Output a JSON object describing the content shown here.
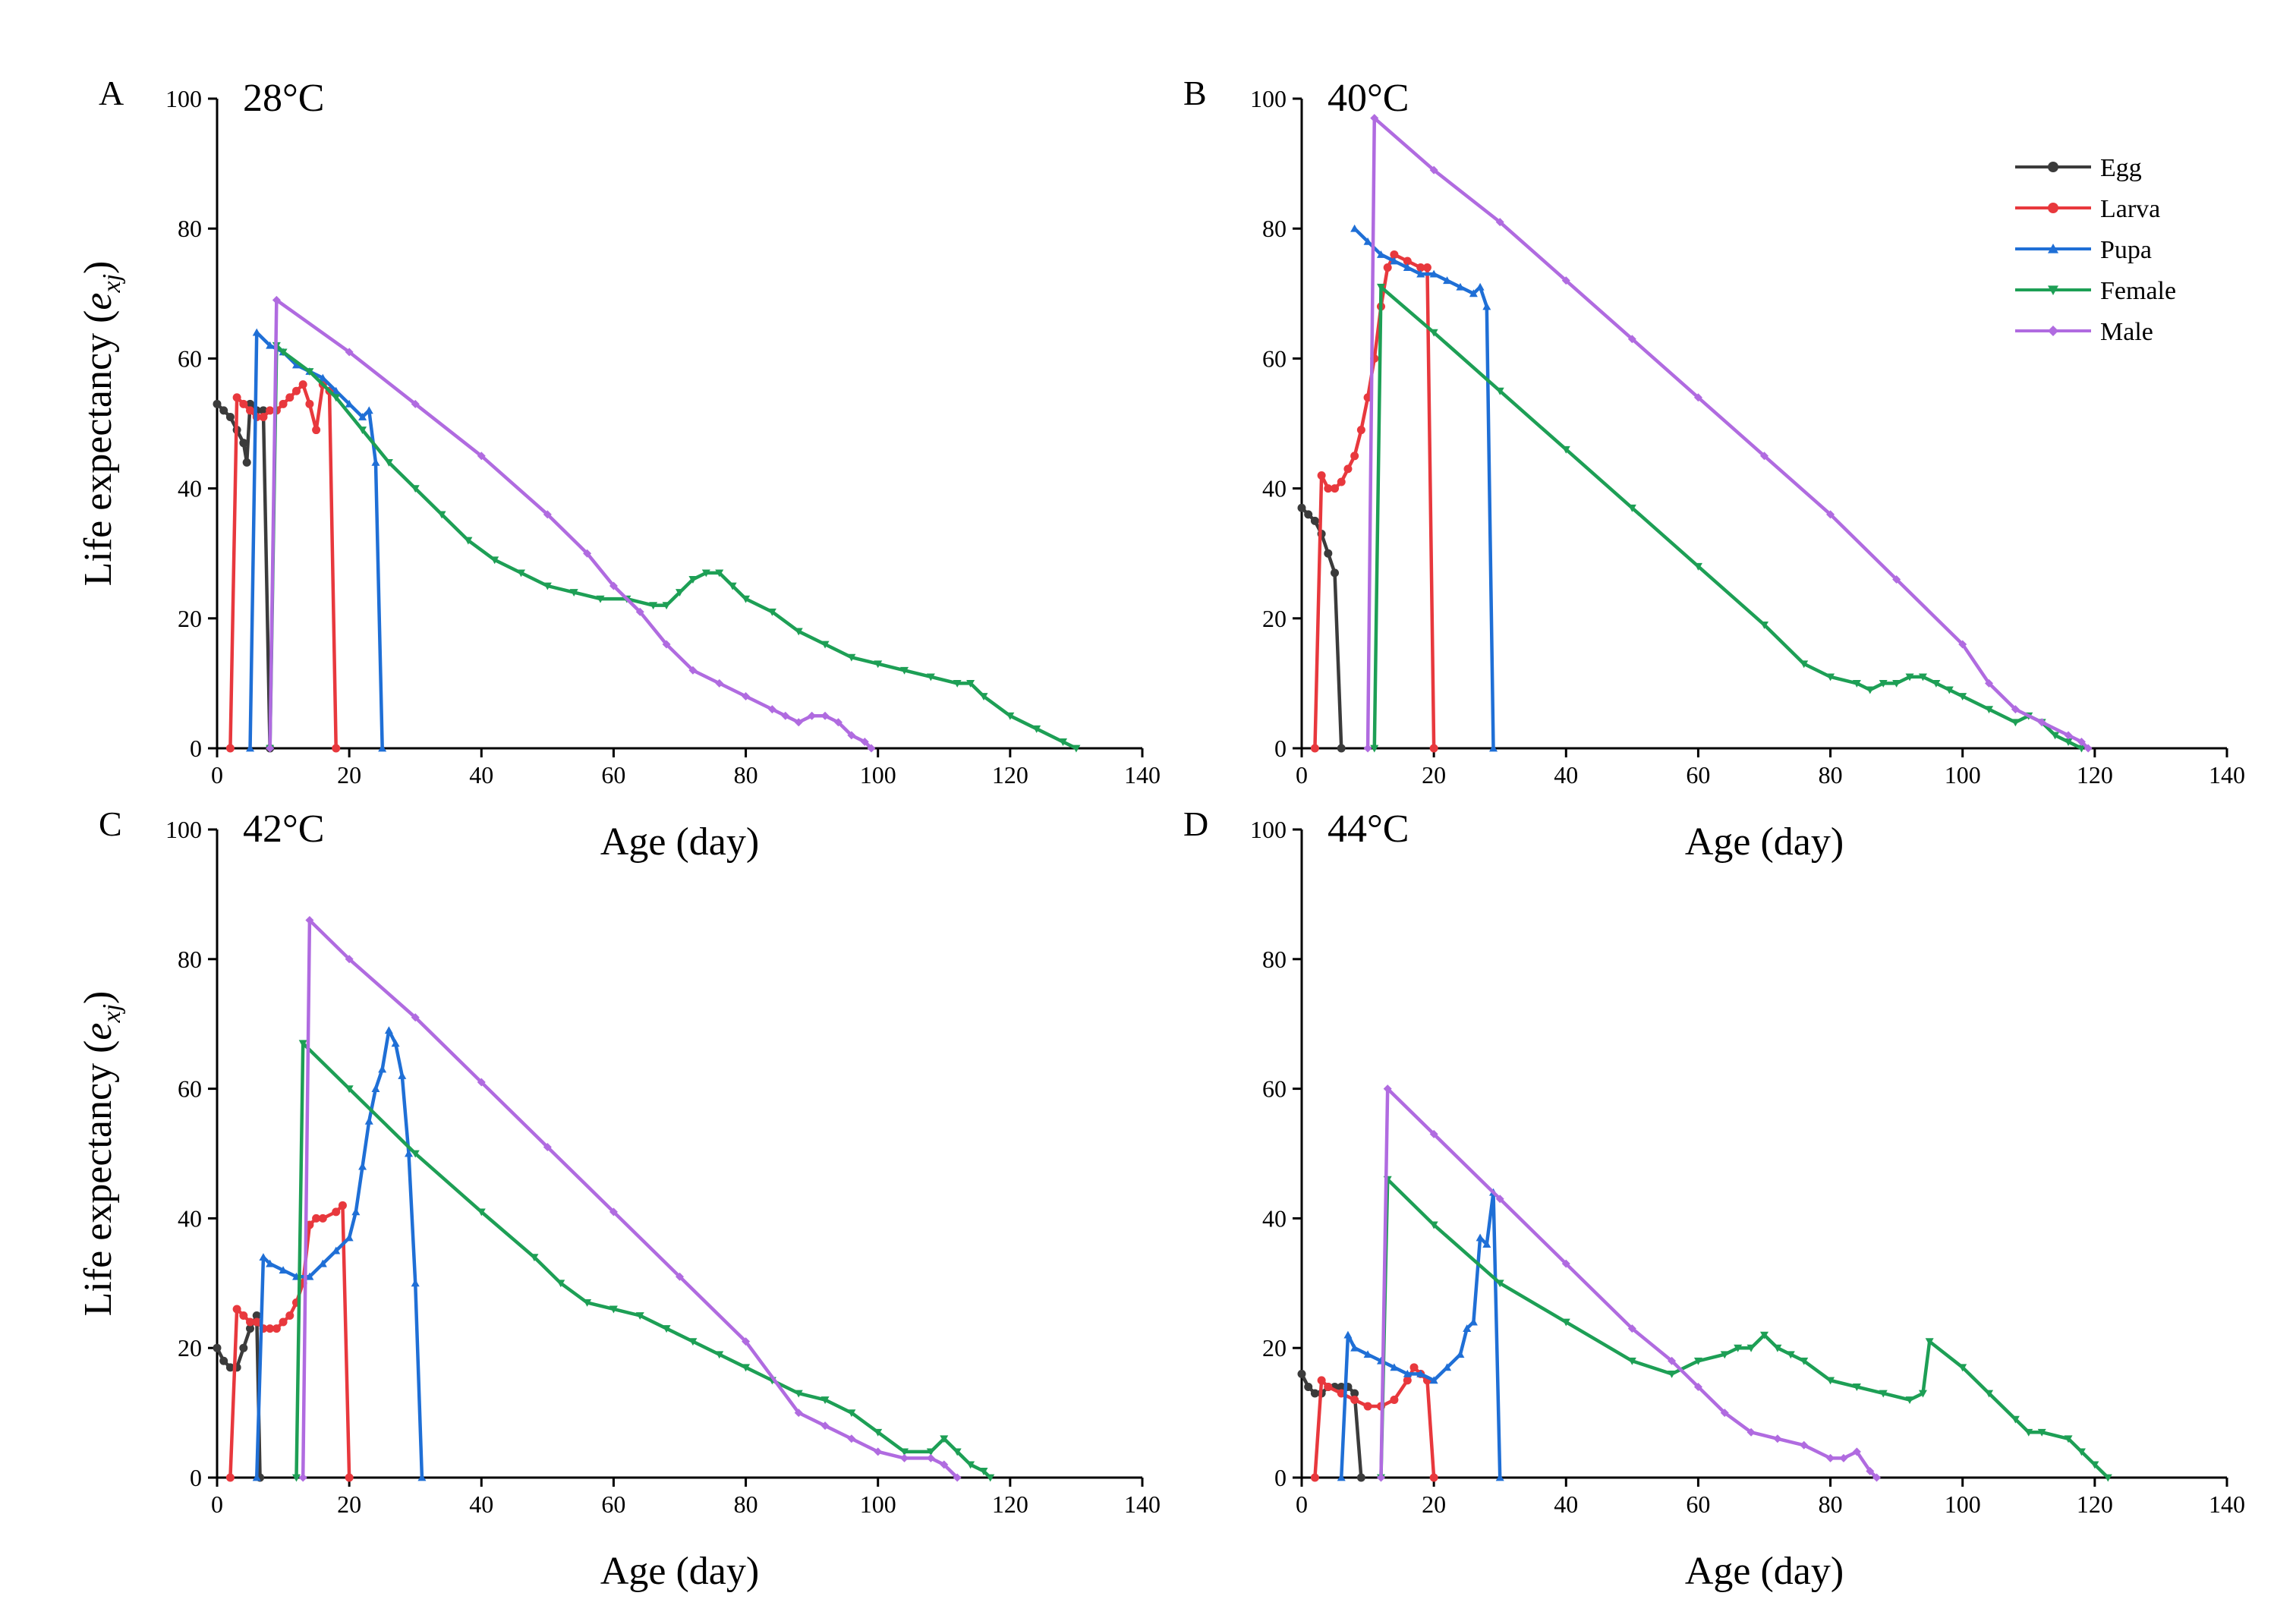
{
  "chart_data": [
    {
      "type": "line",
      "panel": "A",
      "title": "28°C",
      "xlabel": "Age (day)",
      "ylabel": "Life expectancy (e_xj)",
      "xlim": [
        0,
        140
      ],
      "ylim": [
        0,
        100
      ],
      "xticks": [
        0,
        20,
        40,
        60,
        80,
        100,
        120,
        140
      ],
      "yticks": [
        0,
        20,
        40,
        60,
        80,
        100
      ],
      "series": [
        {
          "name": "Egg",
          "color": "#3b3b3b",
          "x": [
            0,
            1,
            2,
            3,
            4,
            4.5,
            5,
            6,
            7,
            8
          ],
          "y": [
            53,
            52,
            51,
            49,
            47,
            44,
            53,
            52,
            52,
            0
          ]
        },
        {
          "name": "Larva",
          "color": "#e8383d",
          "x": [
            2,
            3,
            4,
            5,
            6,
            7,
            8,
            9,
            10,
            11,
            12,
            13,
            14,
            15,
            16,
            17,
            18
          ],
          "y": [
            0,
            54,
            53,
            52,
            51,
            51,
            52,
            52,
            53,
            54,
            55,
            56,
            53,
            49,
            56,
            55,
            0
          ]
        },
        {
          "name": "Pupa",
          "color": "#1f6fd6",
          "x": [
            5,
            6,
            8,
            10,
            12,
            14,
            16,
            18,
            20,
            22,
            23,
            24,
            25
          ],
          "y": [
            0,
            64,
            62,
            61,
            59,
            58,
            57,
            55,
            53,
            51,
            52,
            44,
            0
          ]
        },
        {
          "name": "Female",
          "color": "#1d9f55",
          "x": [
            8,
            9,
            10,
            14,
            18,
            22,
            26,
            30,
            34,
            38,
            42,
            46,
            50,
            54,
            58,
            62,
            66,
            68,
            70,
            72,
            74,
            76,
            78,
            80,
            84,
            88,
            92,
            96,
            100,
            104,
            108,
            112,
            114,
            116,
            120,
            124,
            128,
            130
          ],
          "y": [
            0,
            62,
            61,
            58,
            54,
            49,
            44,
            40,
            36,
            32,
            29,
            27,
            25,
            24,
            23,
            23,
            22,
            22,
            24,
            26,
            27,
            27,
            25,
            23,
            21,
            18,
            16,
            14,
            13,
            12,
            11,
            10,
            10,
            8,
            5,
            3,
            1,
            0
          ]
        },
        {
          "name": "Male",
          "color": "#b06be0",
          "x": [
            8,
            9,
            20,
            30,
            40,
            50,
            56,
            60,
            64,
            68,
            72,
            76,
            80,
            84,
            86,
            88,
            90,
            92,
            94,
            96,
            98,
            99
          ],
          "y": [
            0,
            69,
            61,
            53,
            45,
            36,
            30,
            25,
            21,
            16,
            12,
            10,
            8,
            6,
            5,
            4,
            5,
            5,
            4,
            2,
            1,
            0
          ]
        }
      ],
      "legend": []
    },
    {
      "type": "line",
      "panel": "B",
      "title": "40°C",
      "xlabel": "Age (day)",
      "ylabel": "",
      "xlim": [
        0,
        140
      ],
      "ylim": [
        0,
        100
      ],
      "xticks": [
        0,
        20,
        40,
        60,
        80,
        100,
        120,
        140
      ],
      "yticks": [
        0,
        20,
        40,
        60,
        80,
        100
      ],
      "series": [
        {
          "name": "Egg",
          "color": "#3b3b3b",
          "x": [
            0,
            1,
            2,
            3,
            4,
            5,
            6
          ],
          "y": [
            37,
            36,
            35,
            33,
            30,
            27,
            0
          ]
        },
        {
          "name": "Larva",
          "color": "#e8383d",
          "x": [
            2,
            3,
            4,
            5,
            6,
            7,
            8,
            9,
            10,
            11,
            12,
            13,
            14,
            16,
            18,
            19,
            20
          ],
          "y": [
            0,
            42,
            40,
            40,
            41,
            43,
            45,
            49,
            54,
            60,
            68,
            74,
            76,
            75,
            74,
            74,
            0
          ]
        },
        {
          "name": "Pupa",
          "color": "#1f6fd6",
          "x": [
            8,
            10,
            12,
            14,
            16,
            18,
            20,
            22,
            24,
            26,
            27,
            28,
            29
          ],
          "y": [
            80,
            78,
            76,
            75,
            74,
            73,
            73,
            72,
            71,
            70,
            71,
            68,
            0
          ]
        },
        {
          "name": "Female",
          "color": "#1d9f55",
          "x": [
            11,
            12,
            20,
            30,
            40,
            50,
            60,
            70,
            76,
            80,
            84,
            86,
            88,
            90,
            92,
            94,
            96,
            98,
            100,
            104,
            108,
            110,
            112,
            114,
            116,
            118
          ],
          "y": [
            0,
            71,
            64,
            55,
            46,
            37,
            28,
            19,
            13,
            11,
            10,
            9,
            10,
            10,
            11,
            11,
            10,
            9,
            8,
            6,
            4,
            5,
            4,
            2,
            1,
            0
          ]
        },
        {
          "name": "Male",
          "color": "#b06be0",
          "x": [
            10,
            11,
            20,
            30,
            40,
            50,
            60,
            70,
            80,
            90,
            100,
            104,
            108,
            112,
            116,
            118,
            119
          ],
          "y": [
            0,
            97,
            89,
            81,
            72,
            63,
            54,
            45,
            36,
            26,
            16,
            10,
            6,
            4,
            2,
            1,
            0
          ]
        }
      ],
      "legend": [
        "Egg",
        "Larva",
        "Pupa",
        "Female",
        "Male"
      ]
    },
    {
      "type": "line",
      "panel": "C",
      "title": "42°C",
      "xlabel": "Age (day)",
      "ylabel": "Life expectancy (e_xj)",
      "xlim": [
        0,
        140
      ],
      "ylim": [
        0,
        100
      ],
      "xticks": [
        0,
        20,
        40,
        60,
        80,
        100,
        120,
        140
      ],
      "yticks": [
        0,
        20,
        40,
        60,
        80,
        100
      ],
      "series": [
        {
          "name": "Egg",
          "color": "#3b3b3b",
          "x": [
            0,
            1,
            2,
            3,
            4,
            5,
            6,
            6.5
          ],
          "y": [
            20,
            18,
            17,
            17,
            20,
            23,
            25,
            0
          ]
        },
        {
          "name": "Larva",
          "color": "#e8383d",
          "x": [
            2,
            3,
            4,
            5,
            6,
            7,
            8,
            9,
            10,
            11,
            12,
            13,
            14,
            15,
            16,
            18,
            19,
            20
          ],
          "y": [
            0,
            26,
            25,
            24,
            24,
            23,
            23,
            23,
            24,
            25,
            27,
            30,
            39,
            40,
            40,
            41,
            42,
            0
          ]
        },
        {
          "name": "Pupa",
          "color": "#1f6fd6",
          "x": [
            6,
            7,
            8,
            10,
            12,
            14,
            16,
            18,
            20,
            21,
            22,
            23,
            24,
            25,
            26,
            27,
            28,
            29,
            30,
            31
          ],
          "y": [
            0,
            34,
            33,
            32,
            31,
            31,
            33,
            35,
            37,
            41,
            48,
            55,
            60,
            63,
            69,
            67,
            62,
            50,
            30,
            0
          ]
        },
        {
          "name": "Female",
          "color": "#1d9f55",
          "x": [
            12,
            13,
            20,
            30,
            40,
            48,
            52,
            56,
            60,
            64,
            68,
            72,
            76,
            80,
            84,
            88,
            92,
            96,
            100,
            104,
            108,
            110,
            112,
            114,
            116,
            117
          ],
          "y": [
            0,
            67,
            60,
            50,
            41,
            34,
            30,
            27,
            26,
            25,
            23,
            21,
            19,
            17,
            15,
            13,
            12,
            10,
            7,
            4,
            4,
            6,
            4,
            2,
            1,
            0
          ]
        },
        {
          "name": "Male",
          "color": "#b06be0",
          "x": [
            13,
            14,
            20,
            30,
            40,
            50,
            60,
            70,
            80,
            88,
            92,
            96,
            100,
            104,
            108,
            110,
            112
          ],
          "y": [
            0,
            86,
            80,
            71,
            61,
            51,
            41,
            31,
            21,
            10,
            8,
            6,
            4,
            3,
            3,
            2,
            0
          ]
        }
      ],
      "legend": []
    },
    {
      "type": "line",
      "panel": "D",
      "title": "44°C",
      "xlabel": "Age (day)",
      "ylabel": "",
      "xlim": [
        0,
        140
      ],
      "ylim": [
        0,
        100
      ],
      "xticks": [
        0,
        20,
        40,
        60,
        80,
        100,
        120,
        140
      ],
      "yticks": [
        0,
        20,
        40,
        60,
        80,
        100
      ],
      "series": [
        {
          "name": "Egg",
          "color": "#3b3b3b",
          "x": [
            0,
            1,
            2,
            3,
            4,
            5,
            6,
            7,
            8,
            9
          ],
          "y": [
            16,
            14,
            13,
            13,
            14,
            14,
            14,
            14,
            13,
            0
          ]
        },
        {
          "name": "Larva",
          "color": "#e8383d",
          "x": [
            2,
            3,
            4,
            6,
            8,
            10,
            12,
            14,
            16,
            17,
            18,
            19,
            20
          ],
          "y": [
            0,
            15,
            14,
            13,
            12,
            11,
            11,
            12,
            15,
            17,
            16,
            15,
            0
          ]
        },
        {
          "name": "Pupa",
          "color": "#1f6fd6",
          "x": [
            6,
            7,
            8,
            10,
            12,
            14,
            16,
            18,
            20,
            22,
            24,
            25,
            26,
            27,
            28,
            29,
            30
          ],
          "y": [
            0,
            22,
            20,
            19,
            18,
            17,
            16,
            16,
            15,
            17,
            19,
            23,
            24,
            37,
            36,
            44,
            0
          ]
        },
        {
          "name": "Female",
          "color": "#1d9f55",
          "x": [
            12,
            13,
            20,
            30,
            40,
            50,
            56,
            60,
            64,
            66,
            68,
            70,
            72,
            74,
            76,
            80,
            84,
            88,
            92,
            94,
            95,
            100,
            104,
            108,
            110,
            112,
            116,
            118,
            120,
            122
          ],
          "y": [
            0,
            46,
            39,
            30,
            24,
            18,
            16,
            18,
            19,
            20,
            20,
            22,
            20,
            19,
            18,
            15,
            14,
            13,
            12,
            13,
            21,
            17,
            13,
            9,
            7,
            7,
            6,
            4,
            2,
            0
          ]
        },
        {
          "name": "Male",
          "color": "#b06be0",
          "x": [
            12,
            13,
            20,
            30,
            40,
            50,
            56,
            60,
            64,
            68,
            72,
            76,
            80,
            82,
            84,
            86,
            87
          ],
          "y": [
            0,
            60,
            53,
            43,
            33,
            23,
            18,
            14,
            10,
            7,
            6,
            5,
            3,
            3,
            4,
            1,
            0
          ]
        }
      ],
      "legend": []
    }
  ]
}
